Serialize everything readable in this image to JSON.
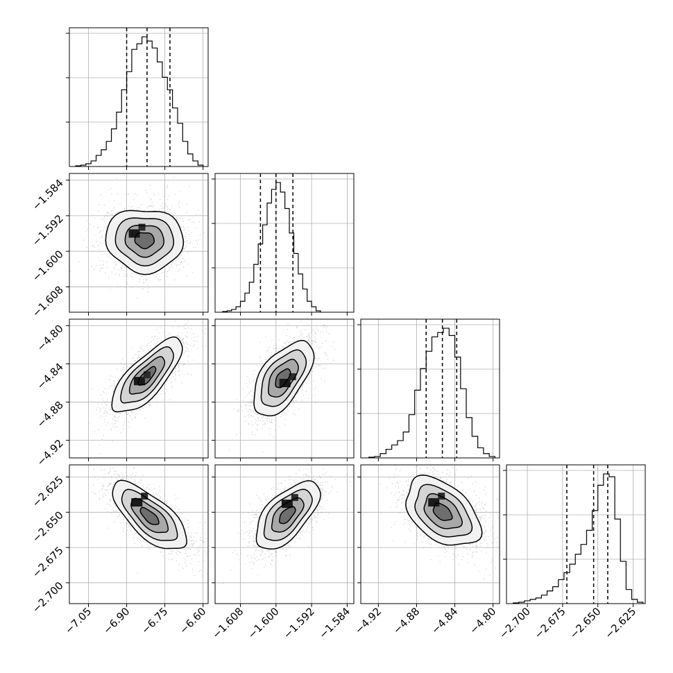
{
  "chart_data": {
    "type": "corner",
    "grid": true,
    "dimensions": [
      {
        "ticks": [
          -7.05,
          -6.9,
          -6.75,
          -6.6
        ],
        "tick_labels": [
          "−7.05",
          "−6.90",
          "−6.75",
          "−6.60"
        ],
        "range": [
          -7.125,
          -6.58
        ],
        "quantiles": [
          -6.9,
          -6.82,
          -6.73
        ]
      },
      {
        "ticks": [
          -1.608,
          -1.6,
          -1.592,
          -1.584
        ],
        "tick_labels": [
          "−1.608",
          "−1.600",
          "−1.592",
          "−1.584"
        ],
        "range": [
          -1.6137,
          -1.5825
        ],
        "quantiles": [
          -1.6035,
          -1.6,
          -1.5962
        ]
      },
      {
        "ticks": [
          -4.92,
          -4.88,
          -4.84,
          -4.8
        ],
        "tick_labels": [
          "−4.92",
          "−4.88",
          "−4.84",
          "−4.80"
        ],
        "range": [
          -4.9384,
          -4.7932
        ],
        "quantiles": [
          -4.87,
          -4.853,
          -4.838
        ]
      },
      {
        "ticks": [
          -2.7,
          -2.675,
          -2.65,
          -2.625
        ],
        "tick_labels": [
          "−2.700",
          "−2.675",
          "−2.650",
          "−2.625"
        ],
        "range": [
          -2.7148,
          -2.6164
        ],
        "quantiles": [
          -2.672,
          -2.653,
          -2.643
        ]
      }
    ],
    "histograms": [
      {
        "dim": 0,
        "bin_edges": [
          -7.1,
          -7.08,
          -7.06,
          -7.04,
          -7.02,
          -7.0,
          -6.98,
          -6.96,
          -6.94,
          -6.92,
          -6.9,
          -6.88,
          -6.86,
          -6.84,
          -6.82,
          -6.8,
          -6.78,
          -6.76,
          -6.74,
          -6.72,
          -6.7,
          -6.68,
          -6.66,
          -6.64,
          -6.62,
          -6.6
        ],
        "counts": [
          0.5,
          1,
          2,
          4,
          8,
          12,
          18,
          27,
          39,
          55,
          68,
          84,
          88,
          93,
          90,
          85,
          75,
          64,
          55,
          42,
          31,
          18,
          9,
          4,
          1
        ]
      },
      {
        "dim": 1,
        "bin_edges": [
          -1.612,
          -1.611,
          -1.61,
          -1.609,
          -1.608,
          -1.607,
          -1.606,
          -1.605,
          -1.604,
          -1.603,
          -1.602,
          -1.601,
          -1.6,
          -1.599,
          -1.598,
          -1.597,
          -1.596,
          -1.595,
          -1.594,
          -1.593,
          -1.592,
          -1.591,
          -1.59
        ],
        "counts": [
          0.5,
          1,
          2,
          4,
          8,
          14,
          22,
          35,
          50,
          64,
          80,
          90,
          95,
          88,
          76,
          58,
          43,
          28,
          17,
          8,
          4,
          1
        ]
      },
      {
        "dim": 2,
        "bin_edges": [
          -4.93,
          -4.924,
          -4.918,
          -4.912,
          -4.906,
          -4.9,
          -4.894,
          -4.888,
          -4.882,
          -4.876,
          -4.87,
          -4.864,
          -4.858,
          -4.852,
          -4.846,
          -4.84,
          -4.834,
          -4.828,
          -4.822,
          -4.816,
          -4.81,
          -4.804,
          -4.798
        ],
        "counts": [
          0.5,
          1,
          3,
          6,
          9,
          12,
          18,
          30,
          47,
          62,
          74,
          84,
          87,
          90,
          85,
          70,
          48,
          28,
          15,
          7,
          3,
          1
        ]
      },
      {
        "dim": 3,
        "bin_edges": [
          -2.71,
          -2.706,
          -2.702,
          -2.698,
          -2.694,
          -2.69,
          -2.686,
          -2.682,
          -2.678,
          -2.674,
          -2.67,
          -2.666,
          -2.662,
          -2.658,
          -2.654,
          -2.65,
          -2.646,
          -2.642,
          -2.638,
          -2.634,
          -2.63,
          -2.626,
          -2.622,
          -2.618
        ],
        "counts": [
          0.5,
          1,
          2,
          3,
          4,
          6,
          9,
          12,
          17,
          22,
          28,
          35,
          42,
          52,
          66,
          84,
          92,
          90,
          60,
          30,
          10,
          3,
          1
        ]
      }
    ],
    "pairs": [
      {
        "x_dim": 0,
        "y_dim": 1,
        "center": [
          -6.83,
          -1.5975
        ],
        "sigma": [
          0.075,
          0.0036
        ],
        "rho": 0.0,
        "peak": [
          -6.87,
          -1.596
        ]
      },
      {
        "x_dim": 0,
        "y_dim": 2,
        "center": [
          -6.82,
          -4.853
        ],
        "sigma": [
          0.07,
          0.02
        ],
        "rho": 0.78,
        "peak": [
          -6.85,
          -4.858
        ]
      },
      {
        "x_dim": 1,
        "y_dim": 2,
        "center": [
          -1.5985,
          -4.855
        ],
        "sigma": [
          0.0034,
          0.02
        ],
        "rho": 0.62,
        "peak": [
          -1.598,
          -4.86
        ]
      },
      {
        "x_dim": 0,
        "y_dim": 3,
        "center": [
          -6.81,
          -2.653
        ],
        "sigma": [
          0.075,
          0.012
        ],
        "rho": -0.72,
        "peak": [
          -6.86,
          -2.643
        ]
      },
      {
        "x_dim": 1,
        "y_dim": 3,
        "center": [
          -1.5975,
          -2.652
        ],
        "sigma": [
          0.0037,
          0.012
        ],
        "rho": 0.65,
        "peak": [
          -1.5975,
          -2.644
        ]
      },
      {
        "x_dim": 2,
        "y_dim": 3,
        "center": [
          -4.853,
          -2.65
        ],
        "sigma": [
          0.02,
          0.012
        ],
        "rho": -0.45,
        "peak": [
          -4.862,
          -2.643
        ]
      }
    ],
    "contour_levels_sigma": [
      0.5,
      1.0,
      1.5,
      2.0
    ],
    "colors": {
      "contour": "#000000",
      "points": "#a0a0a0",
      "hist_line": "#000000",
      "quantile_line": "#000000",
      "grid": "#b0b0b0"
    }
  }
}
